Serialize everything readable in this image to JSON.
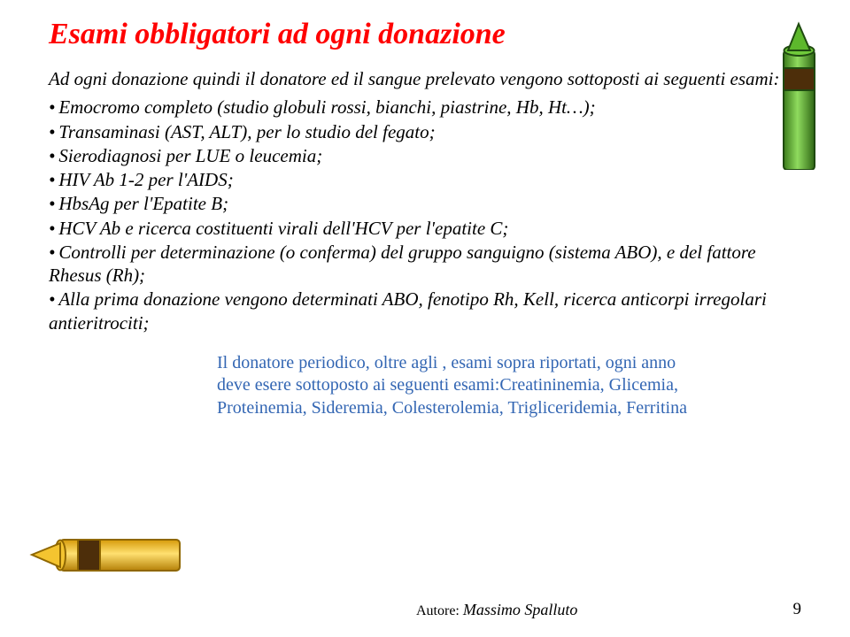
{
  "title": "Esami obbligatori ad ogni donazione",
  "intro": "Ad ogni donazione quindi il donatore ed il sangue prelevato vengono sottoposti ai seguenti esami:",
  "bullets": [
    "Emocromo completo (studio globuli rossi, bianchi, piastrine, Hb, Ht…);",
    "Transaminasi (AST, ALT), per lo studio del fegato;",
    "Sierodiagnosi per LUE o leucemia;",
    "HIV Ab 1-2 per l'AIDS;",
    "HbsAg per l'Epatite B;",
    "HCV Ab e ricerca costituenti virali dell'HCV per l'epatite C;",
    "Controlli per determinazione (o conferma) del gruppo sanguigno (sistema ABO), e del fattore Rhesus (Rh);",
    "Alla prima donazione vengono determinati ABO, fenotipo Rh, Kell, ricerca anticorpi irregolari antieritrociti;"
  ],
  "sub_block": "Il donatore periodico, oltre agli , esami sopra riportati, ogni anno deve esere sottoposto ai seguenti esami:Creatininemia, Glicemia, Proteinemia, Sideremia, Colesterolemia, Trigliceridemia, Ferritina",
  "author_label": "Autore: ",
  "author_name": "Massimo Spalluto",
  "page_number": "9",
  "colors": {
    "title": "#ff0000",
    "body": "#000000",
    "sub_block": "#3366b3",
    "crayon_green_dark": "#3a7a1a",
    "crayon_green": "#5db82c",
    "crayon_green_light": "#8fdb5e",
    "crayon_yellow_dark": "#d69a0a",
    "crayon_yellow": "#f4c430",
    "crayon_yellow_light": "#ffe070",
    "crayon_inner": "#4d2e0a"
  }
}
